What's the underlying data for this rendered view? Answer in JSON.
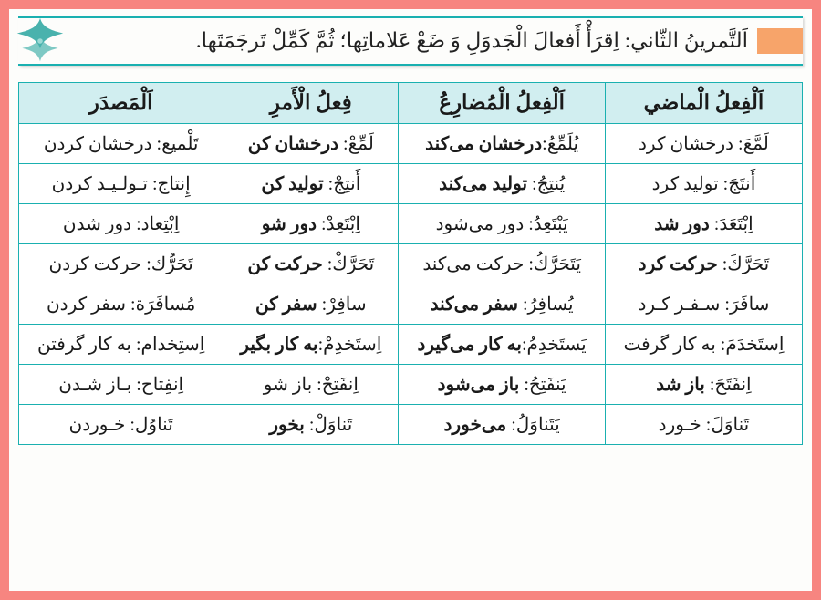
{
  "header": {
    "text": "اَلتَّمرينُ الثّاني: اِقرَأْ أَفعالَ الْجَدوَلِ وَ ضَعْ عَلاماتِها؛ ثُمَّ كَمِّلْ تَرجَمَتَها."
  },
  "columns": [
    "اَلْفِعلُ الْماضي",
    "اَلْفِعلُ الْمُضارِعُ",
    "فِعلُ الْأَمرِ",
    "اَلْمَصدَر"
  ],
  "rows": [
    {
      "c1_ar": "لَمَّعَ:",
      "c1_fa": " درخشان كرد",
      "c1_bold": false,
      "c2_ar": "يُلَمِّعُ:",
      "c2_fa": "درخشان می‌كند",
      "c2_bold": true,
      "c3_ar": "لَمِّعْ:",
      "c3_fa": " درخشان كن",
      "c3_bold": true,
      "c4_ar": "تَلْميع:",
      "c4_fa": " درخشان كردن",
      "c4_bold": false
    },
    {
      "c1_ar": "أَنتَجَ:",
      "c1_fa": " توليد كرد",
      "c1_bold": false,
      "c2_ar": "يُنتِجُ:",
      "c2_fa": " توليد می‌كند",
      "c2_bold": true,
      "c3_ar": "أَنتِجْ:",
      "c3_fa": " توليد كن",
      "c3_bold": true,
      "c4_ar": "إِنتاج:",
      "c4_fa": " تـولـيـد كردن",
      "c4_bold": false
    },
    {
      "c1_ar": "اِبْتَعَدَ:",
      "c1_fa": " دور شد",
      "c1_bold": true,
      "c2_ar": "يَبْتَعِدُ:",
      "c2_fa": " دور می‌شود",
      "c2_bold": false,
      "c3_ar": "اِبْتَعِدْ:",
      "c3_fa": " دور شو",
      "c3_bold": true,
      "c4_ar": "اِبْتِعاد:",
      "c4_fa": " دور شدن",
      "c4_bold": false
    },
    {
      "c1_ar": "تَحَرَّكَ:",
      "c1_fa": " حركت كرد",
      "c1_bold": true,
      "c2_ar": "يَتَحَرَّكُ:",
      "c2_fa": " حركت می‌كند",
      "c2_bold": false,
      "c3_ar": "تَحَرَّكْ:",
      "c3_fa": " حركت كن",
      "c3_bold": true,
      "c4_ar": "تَحَرُّك:",
      "c4_fa": " حركت كردن",
      "c4_bold": false
    },
    {
      "c1_ar": "سافَرَ:",
      "c1_fa": " سـفـر كـرد",
      "c1_bold": false,
      "c2_ar": "يُسافِرُ:",
      "c2_fa": " سفر می‌كند",
      "c2_bold": true,
      "c3_ar": "سافِرْ:",
      "c3_fa": " سفر كن",
      "c3_bold": true,
      "c4_ar": "مُسافَرَة:",
      "c4_fa": " سفر كردن",
      "c4_bold": false
    },
    {
      "c1_ar": "اِستَخدَمَ:",
      "c1_fa": " به كار گرفت",
      "c1_bold": false,
      "c2_ar": "يَستَخدِمُ:",
      "c2_fa": "به كار می‌گيرد",
      "c2_bold": true,
      "c3_ar": "اِستَخدِمْ:",
      "c3_fa": "به كار بگير",
      "c3_bold": true,
      "c4_ar": "اِستِخدام:",
      "c4_fa": " به كار گرفتن",
      "c4_bold": false
    },
    {
      "c1_ar": "اِنفَتَحَ:",
      "c1_fa": "  باز شد",
      "c1_bold": true,
      "c2_ar": "يَنفَتِحُ:",
      "c2_fa": " باز می‌شود",
      "c2_bold": true,
      "c3_ar": "اِنفَتِحْ:",
      "c3_fa": " باز شو",
      "c3_bold": false,
      "c4_ar": "اِنفِتاح:",
      "c4_fa": " بـاز شـدن",
      "c4_bold": false
    },
    {
      "c1_ar": "تَناوَلَ:",
      "c1_fa": " خـورد",
      "c1_bold": false,
      "c2_ar": "يَتَناوَلُ:",
      "c2_fa": " می‌خورد",
      "c2_bold": true,
      "c3_ar": "تَناوَلْ:",
      "c3_fa": "  بخور",
      "c3_bold": true,
      "c4_ar": "تَناوُل:",
      "c4_fa": " خـوردن",
      "c4_bold": false
    }
  ],
  "styling": {
    "outer_bg": "#f78580",
    "page_bg": "#fdfdfb",
    "border_color": "#1ab0b0",
    "header_tab_color": "#f7a46a",
    "th_bg": "#d1eef0",
    "th_fontsize": 23,
    "td_fontsize": 20,
    "header_fontsize": 23
  }
}
